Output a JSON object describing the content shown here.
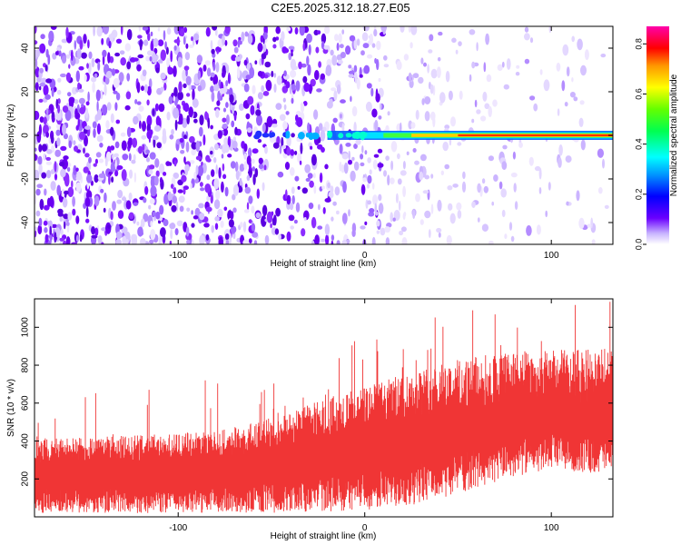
{
  "figure": {
    "title": "C2E5.2025.312.18.27.E05"
  },
  "chart_data": [
    {
      "type": "heatmap",
      "title": "C2E5.2025.312.18.27.E05",
      "xlabel": "Height of straight line (km)",
      "ylabel": "Frequency (Hz)",
      "xlim": [
        -177,
        133
      ],
      "ylim": [
        -50,
        50
      ],
      "xticks": [
        -100,
        0,
        100
      ],
      "yticks": [
        -40,
        -20,
        0,
        20,
        40
      ],
      "colorbar": {
        "label": "Normalized spectral amplitude",
        "range": [
          0.0,
          0.87
        ],
        "ticks": [
          "0.0",
          "0.2",
          "0.4",
          "0.6",
          "0.8"
        ],
        "colormap": "rainbow (violet to red)"
      },
      "signal_line": {
        "frequency": 0,
        "start_height": -60,
        "end_height": 133,
        "amplitude_trend": "increasing from ~0.3 to ~0.85"
      }
    },
    {
      "type": "line",
      "xlabel": "Height of straight line (km)",
      "ylabel": "SNR (10 * v/v)",
      "xlim": [
        -177,
        133
      ],
      "ylim": [
        0,
        1150
      ],
      "xticks": [
        -100,
        0,
        100
      ],
      "yticks": [
        200,
        400,
        600,
        800,
        1000
      ],
      "series": [
        {
          "name": "SNR",
          "color": "#f03535",
          "x": [
            -177,
            -150,
            -125,
            -100,
            -75,
            -50,
            -25,
            0,
            25,
            50,
            75,
            100,
            125,
            133
          ],
          "band_low": [
            20,
            20,
            20,
            20,
            20,
            20,
            25,
            35,
            60,
            120,
            200,
            250,
            230,
            230
          ],
          "band_high": [
            380,
            380,
            390,
            400,
            420,
            470,
            560,
            620,
            700,
            760,
            790,
            800,
            810,
            810
          ],
          "max_peak": 1150
        }
      ]
    }
  ]
}
